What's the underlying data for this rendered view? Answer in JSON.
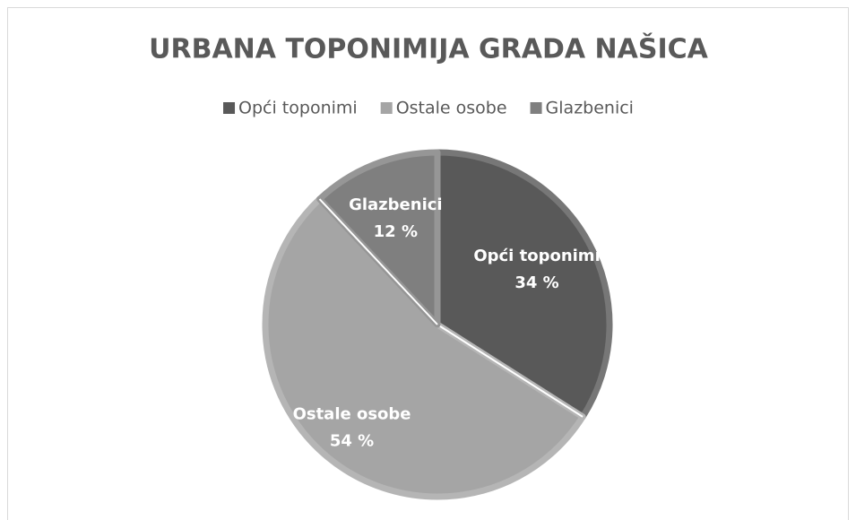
{
  "chart_data": {
    "type": "pie",
    "title": "URBANA TOPONIMIJA GRADA NAŠICA",
    "categories": [
      "Opći toponimi",
      "Ostale osobe",
      "Glazbenici"
    ],
    "values": [
      34,
      54,
      12
    ],
    "value_labels": [
      "34 %",
      "54 %",
      "12 %"
    ],
    "colors": [
      "#595959",
      "#a5a5a5",
      "#7f7f7f"
    ],
    "legend": "top"
  }
}
